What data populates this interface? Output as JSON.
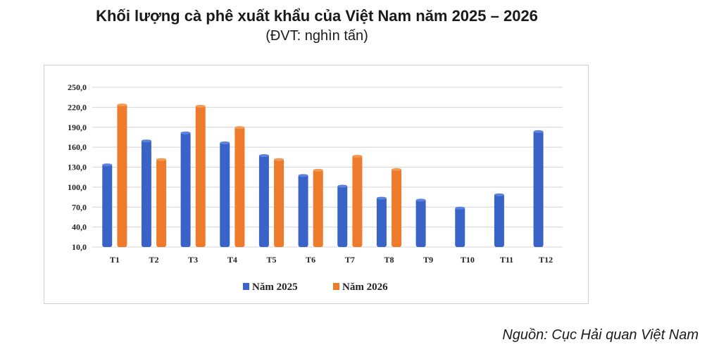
{
  "chart_data": {
    "type": "bar",
    "title": "Khối lượng cà phê xuất khẩu của Việt Nam năm 2025 – 2026",
    "subtitle": "(ĐVT: nghìn tấn)",
    "categories": [
      "T1",
      "T2",
      "T3",
      "T4",
      "T5",
      "T6",
      "T7",
      "T8",
      "T9",
      "T10",
      "T11",
      "T12"
    ],
    "series": [
      {
        "name": "Năm 2025",
        "color": "#3a63c8",
        "values": [
          135,
          171,
          183,
          168,
          149,
          119,
          103,
          85,
          82,
          70,
          90,
          185
        ]
      },
      {
        "name": "Năm 2026",
        "color": "#ee7a2c",
        "values": [
          225,
          143,
          223,
          191,
          143,
          127,
          148,
          128,
          null,
          null,
          null,
          null
        ]
      }
    ],
    "yticks": [
      "10,0",
      "40,0",
      "70,0",
      "100,0",
      "130,0",
      "160,0",
      "190,0",
      "220,0",
      "250,0"
    ],
    "ylim": [
      10,
      250
    ],
    "grid": true,
    "legend_position": "bottom"
  },
  "source": "Nguồn: Cục Hải quan Việt Nam"
}
